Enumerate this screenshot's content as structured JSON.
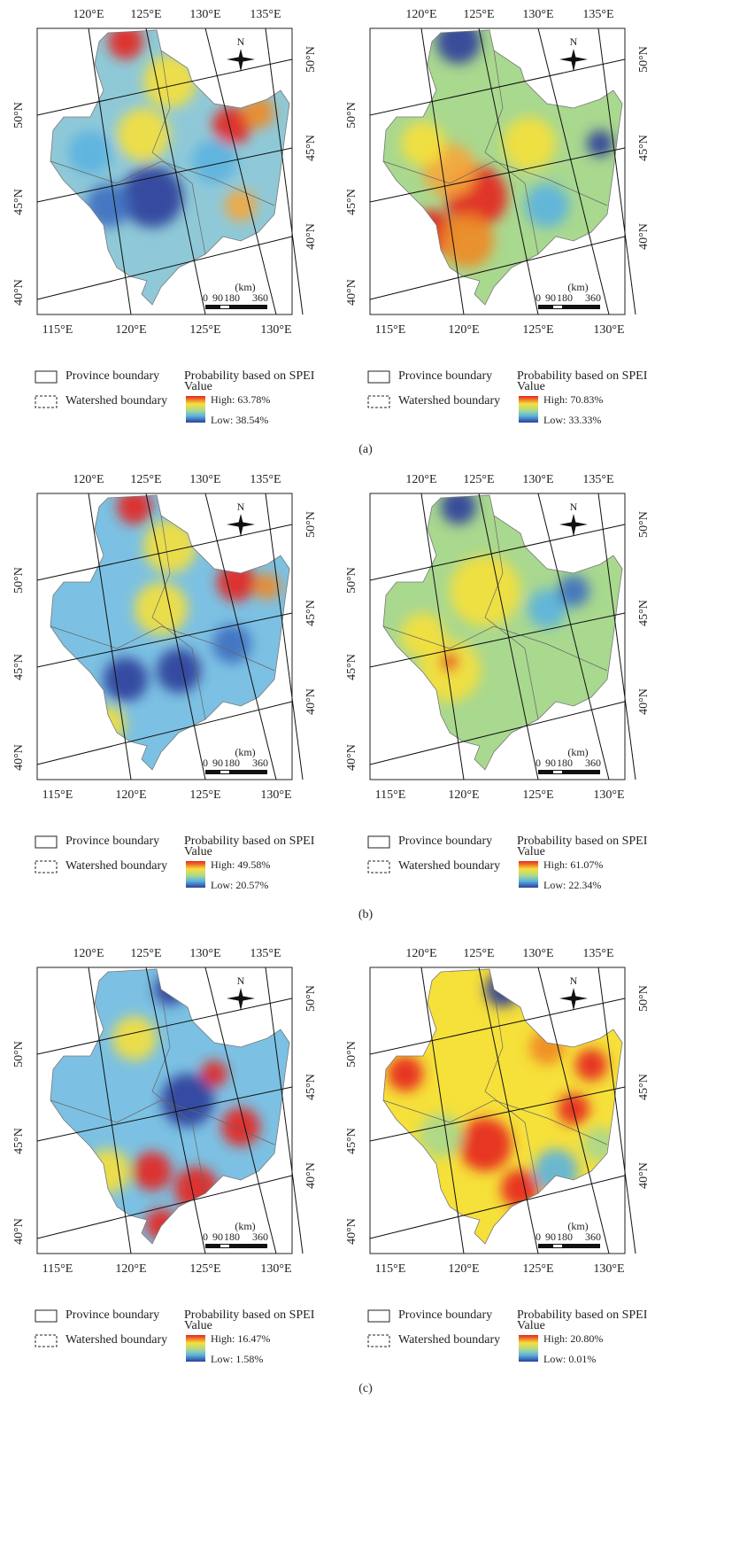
{
  "figure": {
    "axes": {
      "top": [
        "120°E",
        "125°E",
        "130°E",
        "135°E"
      ],
      "bottom": [
        "115°E",
        "120°E",
        "125°E",
        "130°E"
      ],
      "left": [
        "50°N",
        "45°N",
        "40°N"
      ],
      "right": [
        "50°N",
        "45°N",
        "40°N"
      ]
    },
    "north": "N",
    "scale": {
      "unit": "(km)",
      "labels": [
        "0",
        "90",
        "180",
        "360"
      ]
    },
    "legend": {
      "province": "Province boundary",
      "watershed": "Watershed boundary",
      "title": [
        "Probability based on SPEI",
        "Value"
      ]
    },
    "panels": [
      {
        "label": "(a)",
        "maps": [
          {
            "high": "High: 63.78%",
            "low": "Low: 38.54%"
          },
          {
            "high": "High: 70.83%",
            "low": "Low: 33.33%"
          }
        ]
      },
      {
        "label": "(b)",
        "maps": [
          {
            "high": "High: 49.58%",
            "low": "Low: 20.57%"
          },
          {
            "high": "High: 61.07%",
            "low": "Low: 22.34%"
          }
        ]
      },
      {
        "label": "(c)",
        "maps": [
          {
            "high": "High: 16.47%",
            "low": "Low: 1.58%"
          },
          {
            "high": "High: 20.80%",
            "low": "Low: 0.01%"
          }
        ]
      }
    ]
  }
}
